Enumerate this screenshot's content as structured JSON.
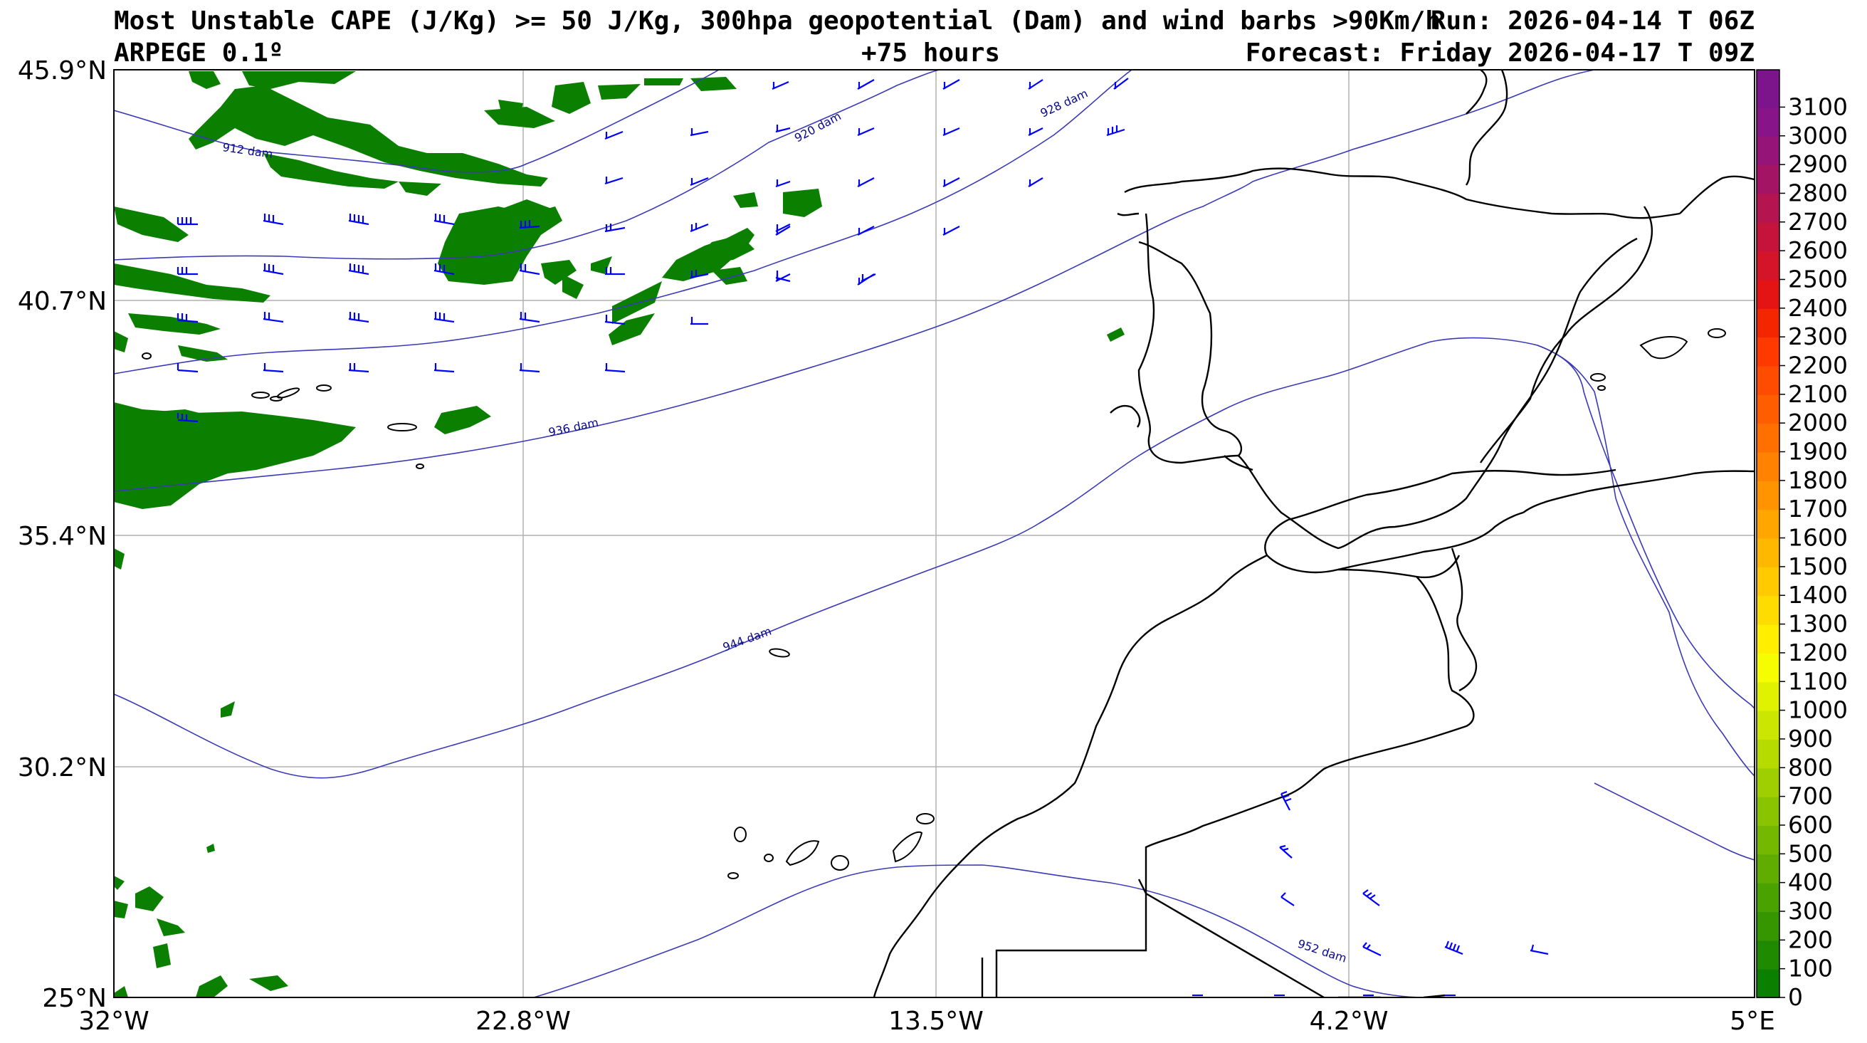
{
  "header": {
    "title": "Most Unstable CAPE (J/Kg) >= 50 J/Kg, 300hpa geopotential (Dam) and wind barbs >90Km/h",
    "run": "Run: 2026-04-14 T 06Z",
    "model": "ARPEGE 0.1º",
    "lead_time": "+75 hours",
    "forecast": "Forecast: Friday 2026-04-17 T 09Z"
  },
  "map": {
    "lon_range": [
      -32,
      5
    ],
    "lat_range": [
      25,
      45.9
    ],
    "lon_ticks": [
      "32°W",
      "22.8°W",
      "13.5°W",
      "4.2°W",
      "5°E"
    ],
    "lat_ticks": [
      "45.9°N",
      "40.7°N",
      "35.4°N",
      "30.2°N",
      "25°N"
    ],
    "gridlines": true,
    "contour_color": "#3a3ab8",
    "coast_color": "#000000",
    "cape_color": "#0a7f00",
    "contours": [
      {
        "label": "912 dam"
      },
      {
        "label": "920 dam"
      },
      {
        "label": "928 dam"
      },
      {
        "label": "936 dam"
      },
      {
        "label": "944 dam"
      },
      {
        "label": "952 dam"
      }
    ]
  },
  "colorbar": {
    "ticks": [
      "0",
      "100",
      "200",
      "300",
      "400",
      "500",
      "600",
      "700",
      "800",
      "900",
      "1000",
      "1100",
      "1200",
      "1300",
      "1400",
      "1500",
      "1600",
      "1700",
      "1800",
      "1900",
      "2000",
      "2100",
      "2200",
      "2300",
      "2400",
      "2500",
      "2600",
      "2700",
      "2800",
      "2900",
      "3000",
      "3100"
    ],
    "colors": [
      "#0a7f00",
      "#1f8a00",
      "#359600",
      "#4aa200",
      "#60ad00",
      "#75b800",
      "#8ac400",
      "#a0cf00",
      "#b5db00",
      "#cbe600",
      "#e0f200",
      "#f5fd00",
      "#ffee00",
      "#ffdc00",
      "#ffca00",
      "#ffb800",
      "#ffa600",
      "#ff9400",
      "#ff8200",
      "#ff7000",
      "#ff5e00",
      "#ff4c00",
      "#ff3a00",
      "#f42600",
      "#e41414",
      "#d41428",
      "#c4143c",
      "#b41450",
      "#a41464",
      "#941478",
      "#88148a",
      "#7c148c"
    ]
  }
}
